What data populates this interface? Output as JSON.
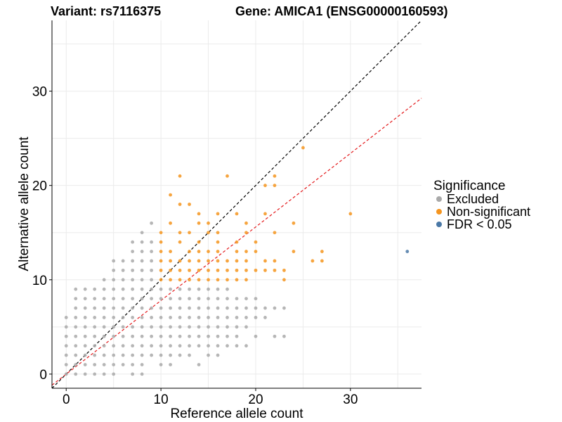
{
  "header": {
    "variant_label": "Variant: rs7116375",
    "gene_label": "Gene: AMICA1 (ENSG00000160593)"
  },
  "chart_data": {
    "type": "scatter",
    "xlabel": "Reference allele count",
    "ylabel": "Alternative allele count",
    "xlim": [
      -1.5,
      37.5
    ],
    "ylim": [
      -1.5,
      37.5
    ],
    "x_ticks": [
      0,
      10,
      20,
      30
    ],
    "y_ticks": [
      0,
      10,
      20,
      30
    ],
    "grid": true,
    "legend": {
      "title": "Significance",
      "placement": "right",
      "entries": [
        {
          "label": "Excluded",
          "color": "#a9a9a9"
        },
        {
          "label": "Non-significant",
          "color": "#f5951f"
        },
        {
          "label": "FDR < 0.05",
          "color": "#4a78a6"
        }
      ]
    },
    "reference_lines": [
      {
        "slope": 1,
        "intercept": 0,
        "color": "#000000",
        "style": "dashed"
      },
      {
        "slope": 0.78,
        "intercept": 0,
        "color": "#e41a1c",
        "style": "dashed"
      }
    ],
    "series": [
      {
        "name": "Excluded",
        "color": "#a9a9a9",
        "points": [
          [
            0,
            0
          ],
          [
            0,
            1
          ],
          [
            0,
            2
          ],
          [
            0,
            3
          ],
          [
            0,
            4
          ],
          [
            0,
            5
          ],
          [
            0,
            6
          ],
          [
            1,
            0
          ],
          [
            1,
            1
          ],
          [
            1,
            2
          ],
          [
            1,
            3
          ],
          [
            1,
            4
          ],
          [
            1,
            5
          ],
          [
            1,
            6
          ],
          [
            1,
            7
          ],
          [
            1,
            8
          ],
          [
            1,
            9
          ],
          [
            2,
            0
          ],
          [
            2,
            1
          ],
          [
            2,
            2
          ],
          [
            2,
            3
          ],
          [
            2,
            4
          ],
          [
            2,
            5
          ],
          [
            2,
            6
          ],
          [
            2,
            7
          ],
          [
            2,
            8
          ],
          [
            2,
            9
          ],
          [
            3,
            0
          ],
          [
            3,
            1
          ],
          [
            3,
            2
          ],
          [
            3,
            3
          ],
          [
            3,
            4
          ],
          [
            3,
            5
          ],
          [
            3,
            6
          ],
          [
            3,
            7
          ],
          [
            3,
            8
          ],
          [
            3,
            9
          ],
          [
            4,
            0
          ],
          [
            4,
            1
          ],
          [
            4,
            2
          ],
          [
            4,
            3
          ],
          [
            4,
            4
          ],
          [
            4,
            5
          ],
          [
            4,
            6
          ],
          [
            4,
            7
          ],
          [
            4,
            8
          ],
          [
            4,
            9
          ],
          [
            4,
            10
          ],
          [
            5,
            0
          ],
          [
            5,
            1
          ],
          [
            5,
            2
          ],
          [
            5,
            3
          ],
          [
            5,
            4
          ],
          [
            5,
            5
          ],
          [
            5,
            6
          ],
          [
            5,
            7
          ],
          [
            5,
            8
          ],
          [
            5,
            9
          ],
          [
            5,
            10
          ],
          [
            5,
            11
          ],
          [
            5,
            12
          ],
          [
            6,
            1
          ],
          [
            6,
            2
          ],
          [
            6,
            3
          ],
          [
            6,
            4
          ],
          [
            6,
            5
          ],
          [
            6,
            6
          ],
          [
            6,
            7
          ],
          [
            6,
            8
          ],
          [
            6,
            9
          ],
          [
            6,
            10
          ],
          [
            6,
            11
          ],
          [
            6,
            12
          ],
          [
            7,
            0
          ],
          [
            7,
            1
          ],
          [
            7,
            2
          ],
          [
            7,
            3
          ],
          [
            7,
            4
          ],
          [
            7,
            5
          ],
          [
            7,
            6
          ],
          [
            7,
            7
          ],
          [
            7,
            8
          ],
          [
            7,
            9
          ],
          [
            7,
            10
          ],
          [
            7,
            11
          ],
          [
            7,
            12
          ],
          [
            7,
            13
          ],
          [
            7,
            14
          ],
          [
            8,
            0
          ],
          [
            8,
            1
          ],
          [
            8,
            2
          ],
          [
            8,
            3
          ],
          [
            8,
            4
          ],
          [
            8,
            5
          ],
          [
            8,
            6
          ],
          [
            8,
            7
          ],
          [
            8,
            8
          ],
          [
            8,
            9
          ],
          [
            8,
            10
          ],
          [
            8,
            11
          ],
          [
            8,
            12
          ],
          [
            8,
            13
          ],
          [
            8,
            14
          ],
          [
            8,
            15
          ],
          [
            9,
            2
          ],
          [
            9,
            3
          ],
          [
            9,
            4
          ],
          [
            9,
            5
          ],
          [
            9,
            6
          ],
          [
            9,
            7
          ],
          [
            9,
            8
          ],
          [
            9,
            9
          ],
          [
            9,
            10
          ],
          [
            9,
            11
          ],
          [
            9,
            12
          ],
          [
            9,
            13
          ],
          [
            9,
            14
          ],
          [
            9,
            16
          ],
          [
            10,
            1
          ],
          [
            10,
            2
          ],
          [
            10,
            3
          ],
          [
            10,
            4
          ],
          [
            10,
            5
          ],
          [
            10,
            6
          ],
          [
            10,
            7
          ],
          [
            10,
            8
          ],
          [
            10,
            9
          ],
          [
            11,
            1
          ],
          [
            11,
            2
          ],
          [
            11,
            3
          ],
          [
            11,
            4
          ],
          [
            11,
            5
          ],
          [
            11,
            6
          ],
          [
            11,
            7
          ],
          [
            11,
            8
          ],
          [
            11,
            9
          ],
          [
            12,
            2
          ],
          [
            12,
            3
          ],
          [
            12,
            4
          ],
          [
            12,
            5
          ],
          [
            12,
            6
          ],
          [
            12,
            7
          ],
          [
            12,
            8
          ],
          [
            12,
            9
          ],
          [
            13,
            2
          ],
          [
            13,
            3
          ],
          [
            13,
            4
          ],
          [
            13,
            5
          ],
          [
            13,
            6
          ],
          [
            13,
            7
          ],
          [
            13,
            8
          ],
          [
            13,
            9
          ],
          [
            14,
            1
          ],
          [
            14,
            3
          ],
          [
            14,
            4
          ],
          [
            14,
            5
          ],
          [
            14,
            6
          ],
          [
            14,
            7
          ],
          [
            14,
            8
          ],
          [
            14,
            9
          ],
          [
            15,
            2
          ],
          [
            15,
            3
          ],
          [
            15,
            4
          ],
          [
            15,
            5
          ],
          [
            15,
            6
          ],
          [
            15,
            7
          ],
          [
            15,
            8
          ],
          [
            15,
            9
          ],
          [
            16,
            2
          ],
          [
            16,
            3
          ],
          [
            16,
            4
          ],
          [
            16,
            5
          ],
          [
            16,
            6
          ],
          [
            16,
            7
          ],
          [
            16,
            8
          ],
          [
            16,
            9
          ],
          [
            17,
            3
          ],
          [
            17,
            4
          ],
          [
            17,
            5
          ],
          [
            17,
            6
          ],
          [
            17,
            7
          ],
          [
            17,
            8
          ],
          [
            17,
            9
          ],
          [
            18,
            3
          ],
          [
            18,
            4
          ],
          [
            18,
            5
          ],
          [
            18,
            6
          ],
          [
            18,
            7
          ],
          [
            18,
            8
          ],
          [
            19,
            3
          ],
          [
            19,
            5
          ],
          [
            19,
            6
          ],
          [
            19,
            7
          ],
          [
            19,
            8
          ],
          [
            20,
            4
          ],
          [
            20,
            6
          ],
          [
            20,
            7
          ],
          [
            20,
            8
          ],
          [
            21,
            6
          ],
          [
            21,
            7
          ],
          [
            22,
            4
          ],
          [
            22,
            7
          ],
          [
            23,
            4
          ],
          [
            23,
            7
          ]
        ]
      },
      {
        "name": "Non-significant",
        "color": "#f5951f",
        "points": [
          [
            10,
            10
          ],
          [
            10,
            11
          ],
          [
            10,
            12
          ],
          [
            10,
            13
          ],
          [
            10,
            14
          ],
          [
            10,
            15
          ],
          [
            11,
            10
          ],
          [
            11,
            11
          ],
          [
            11,
            12
          ],
          [
            11,
            13
          ],
          [
            11,
            16
          ],
          [
            11,
            19
          ],
          [
            12,
            10
          ],
          [
            12,
            11
          ],
          [
            12,
            12
          ],
          [
            12,
            14
          ],
          [
            12,
            15
          ],
          [
            12,
            18
          ],
          [
            12,
            21
          ],
          [
            13,
            10
          ],
          [
            13,
            11
          ],
          [
            13,
            12
          ],
          [
            13,
            13
          ],
          [
            13,
            15
          ],
          [
            13,
            18
          ],
          [
            14,
            10
          ],
          [
            14,
            11
          ],
          [
            14,
            12
          ],
          [
            14,
            13
          ],
          [
            14,
            14
          ],
          [
            14,
            16
          ],
          [
            14,
            17
          ],
          [
            15,
            10
          ],
          [
            15,
            11
          ],
          [
            15,
            12
          ],
          [
            15,
            13
          ],
          [
            15,
            15
          ],
          [
            15,
            16
          ],
          [
            16,
            10
          ],
          [
            16,
            11
          ],
          [
            16,
            12
          ],
          [
            16,
            13
          ],
          [
            16,
            14
          ],
          [
            16,
            15
          ],
          [
            16,
            17
          ],
          [
            17,
            10
          ],
          [
            17,
            11
          ],
          [
            17,
            12
          ],
          [
            17,
            21
          ],
          [
            18,
            10
          ],
          [
            18,
            11
          ],
          [
            18,
            12
          ],
          [
            18,
            13
          ],
          [
            18,
            14
          ],
          [
            18,
            17
          ],
          [
            19,
            10
          ],
          [
            19,
            11
          ],
          [
            19,
            12
          ],
          [
            19,
            13
          ],
          [
            19,
            15
          ],
          [
            19,
            16
          ],
          [
            20,
            11
          ],
          [
            20,
            13
          ],
          [
            20,
            14
          ],
          [
            21,
            11
          ],
          [
            21,
            12
          ],
          [
            21,
            17
          ],
          [
            21,
            20
          ],
          [
            22,
            11
          ],
          [
            22,
            12
          ],
          [
            22,
            15
          ],
          [
            22,
            20
          ],
          [
            22,
            21
          ],
          [
            23,
            10
          ],
          [
            23,
            11
          ],
          [
            24,
            13
          ],
          [
            24,
            16
          ],
          [
            25,
            24
          ],
          [
            26,
            12
          ],
          [
            27,
            12
          ],
          [
            27,
            13
          ],
          [
            30,
            17
          ]
        ]
      },
      {
        "name": "FDR < 0.05",
        "color": "#4a78a6",
        "points": [
          [
            36,
            13
          ]
        ]
      }
    ]
  }
}
